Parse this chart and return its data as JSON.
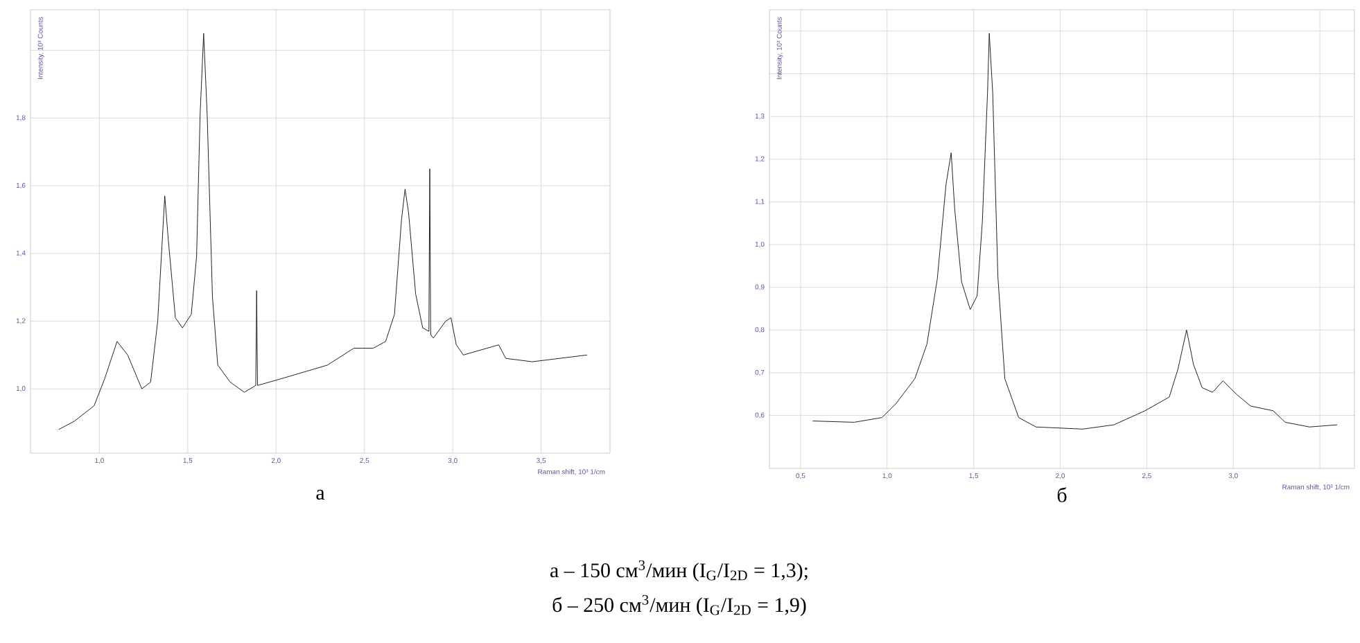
{
  "chart_data": [
    {
      "type": "line",
      "xlabel": "Raman shift, 10³ 1/cm",
      "ylabel": "Intensity, 10³ Counts",
      "color": "#222222",
      "grid": true,
      "xlim": [
        0.61,
        3.89
      ],
      "ylim": [
        0.81,
        2.12
      ],
      "xticks": [
        {
          "value": 1.0,
          "label": "1,0"
        },
        {
          "value": 1.5,
          "label": "1,5"
        },
        {
          "value": 2.0,
          "label": "2,0"
        },
        {
          "value": 2.5,
          "label": "2,5"
        },
        {
          "value": 3.0,
          "label": "3,0"
        },
        {
          "value": 3.5,
          "label": "3,5"
        }
      ],
      "yticks": [
        {
          "value": 1.0,
          "label": "1,0"
        },
        {
          "value": 1.2,
          "label": "1,2"
        },
        {
          "value": 1.4,
          "label": "1,4"
        },
        {
          "value": 1.6,
          "label": "1,6"
        },
        {
          "value": 1.8,
          "label": "1,8"
        },
        {
          "value": 2.0,
          "label": null
        }
      ],
      "x": [
        0.77,
        0.86,
        0.97,
        1.03,
        1.1,
        1.16,
        1.24,
        1.29,
        1.33,
        1.37,
        1.39,
        1.43,
        1.47,
        1.52,
        1.55,
        1.57,
        1.59,
        1.61,
        1.64,
        1.67,
        1.74,
        1.82,
        1.885,
        1.89,
        1.895,
        2.03,
        2.16,
        2.29,
        2.44,
        2.55,
        2.62,
        2.67,
        2.71,
        2.73,
        2.75,
        2.79,
        2.83,
        2.865,
        2.87,
        2.875,
        2.89,
        2.96,
        2.99,
        3.02,
        3.06,
        3.26,
        3.3,
        3.45,
        3.76
      ],
      "values": [
        0.88,
        0.905,
        0.95,
        1.03,
        1.14,
        1.1,
        1.0,
        1.02,
        1.2,
        1.57,
        1.44,
        1.21,
        1.18,
        1.22,
        1.39,
        1.81,
        2.05,
        1.81,
        1.27,
        1.07,
        1.02,
        0.99,
        1.01,
        1.29,
        1.01,
        1.03,
        1.05,
        1.07,
        1.12,
        1.12,
        1.14,
        1.22,
        1.5,
        1.59,
        1.52,
        1.28,
        1.18,
        1.17,
        1.65,
        1.16,
        1.15,
        1.2,
        1.21,
        1.13,
        1.1,
        1.13,
        1.09,
        1.08,
        1.1
      ],
      "annotations": [
        "а"
      ]
    },
    {
      "type": "line",
      "xlabel": "Raman shift, 10³ 1/cm",
      "ylabel": "Intensity, 10³ Counts",
      "color": "#222222",
      "grid": true,
      "xlim": [
        0.32,
        3.7
      ],
      "ylim": [
        0.476,
        1.55
      ],
      "xticks": [
        {
          "value": 0.5,
          "label": "0,5"
        },
        {
          "value": 1.0,
          "label": "1,0"
        },
        {
          "value": 1.5,
          "label": "1,5"
        },
        {
          "value": 2.0,
          "label": "2,0"
        },
        {
          "value": 2.5,
          "label": "2,5"
        },
        {
          "value": 3.0,
          "label": "3,0"
        },
        {
          "value": 3.5,
          "label": null
        }
      ],
      "yticks": [
        {
          "value": 0.6,
          "label": "0,6"
        },
        {
          "value": 0.7,
          "label": "0,7"
        },
        {
          "value": 0.8,
          "label": "0,8"
        },
        {
          "value": 0.9,
          "label": "0,9"
        },
        {
          "value": 1.0,
          "label": "1,0"
        },
        {
          "value": 1.1,
          "label": "1,1"
        },
        {
          "value": 1.2,
          "label": "1,2"
        },
        {
          "value": 1.3,
          "label": "1,3"
        },
        {
          "value": 1.4,
          "label": null
        },
        {
          "value": 1.5,
          "label": null
        }
      ],
      "x": [
        0.57,
        0.81,
        0.97,
        1.05,
        1.16,
        1.23,
        1.29,
        1.34,
        1.37,
        1.39,
        1.43,
        1.48,
        1.52,
        1.55,
        1.58,
        1.59,
        1.61,
        1.64,
        1.68,
        1.76,
        1.86,
        2.13,
        2.31,
        2.49,
        2.63,
        2.68,
        2.73,
        2.77,
        2.82,
        2.88,
        2.94,
        3.02,
        3.1,
        3.23,
        3.3,
        3.44,
        3.6
      ],
      "values": [
        0.587,
        0.584,
        0.595,
        0.627,
        0.686,
        0.767,
        0.92,
        1.14,
        1.215,
        1.085,
        0.913,
        0.848,
        0.88,
        1.053,
        1.355,
        1.495,
        1.355,
        0.924,
        0.686,
        0.595,
        0.573,
        0.568,
        0.578,
        0.611,
        0.643,
        0.708,
        0.8,
        0.719,
        0.665,
        0.654,
        0.681,
        0.649,
        0.622,
        0.611,
        0.584,
        0.573,
        0.578
      ],
      "annotations": [
        "б",
        "а – 150 см$^{3}$/мин (I$_{G}$/I$_{2D}$ = 1,3);",
        "б – 250 см$^{3}$/мин (I$_{G}$/I$_{2D}$ = 1,9)"
      ]
    }
  ]
}
